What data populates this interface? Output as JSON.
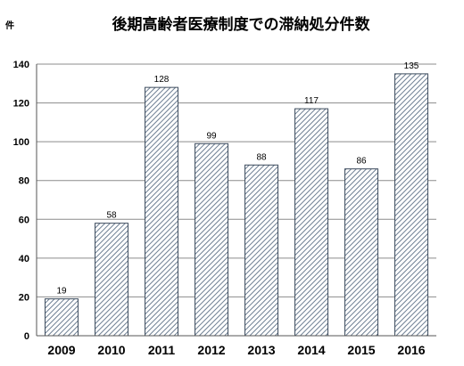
{
  "chart_data": {
    "type": "bar",
    "title": "後期高齢者医療制度での滞納処分件数",
    "unit_label": "件",
    "categories": [
      "2009",
      "2010",
      "2011",
      "2012",
      "2013",
      "2014",
      "2015",
      "2016"
    ],
    "values": [
      19,
      58,
      128,
      99,
      88,
      117,
      86,
      135
    ],
    "data_labels": [
      "19",
      "58",
      "128",
      "99",
      "88",
      "117",
      "86",
      "135"
    ],
    "ylim": [
      0,
      140
    ],
    "yticks": [
      "0",
      "20",
      "40",
      "60",
      "80",
      "100",
      "120",
      "140"
    ],
    "grid": true,
    "legend": "none",
    "bar_fill": "hatched",
    "bar_color": "#6d7e92",
    "bar_outline": "#3c4b5d",
    "grid_color": "#8c8c8c"
  }
}
